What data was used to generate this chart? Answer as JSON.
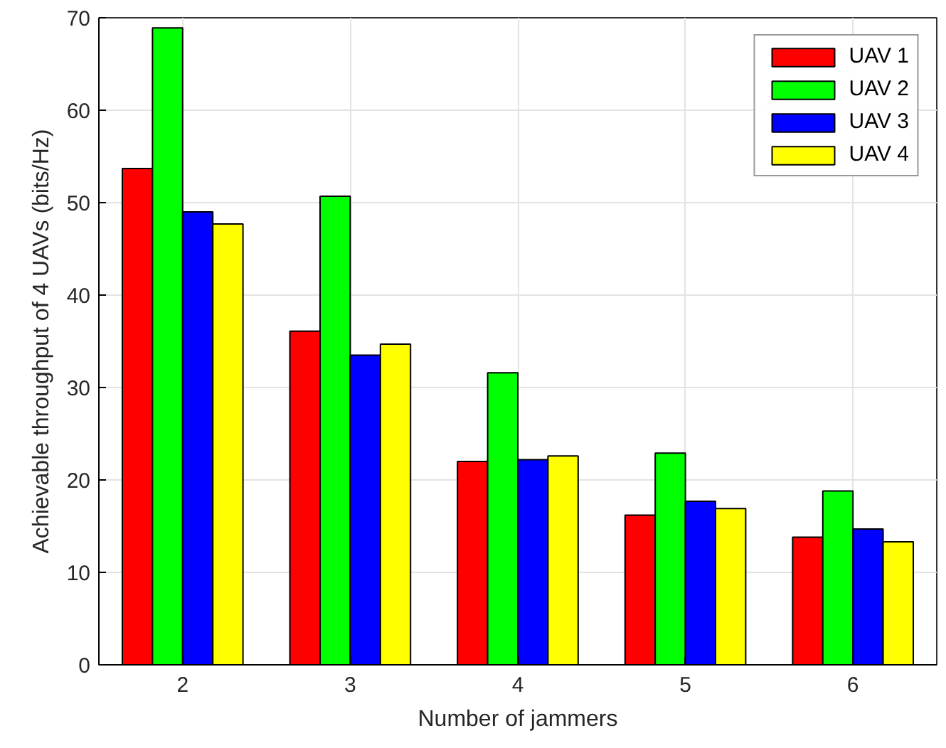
{
  "chart_data": {
    "type": "bar",
    "xlabel": "Number of jammers",
    "ylabel": "Achievable throughput of 4 UAVs (bits/Hz)",
    "categories": [
      "2",
      "3",
      "4",
      "5",
      "6"
    ],
    "series": [
      {
        "name": "UAV 1",
        "color": "#ff0000",
        "values": [
          53.7,
          36.1,
          22.0,
          16.2,
          13.8
        ]
      },
      {
        "name": "UAV 2",
        "color": "#00ff00",
        "values": [
          68.9,
          50.7,
          31.6,
          22.9,
          18.8
        ]
      },
      {
        "name": "UAV 3",
        "color": "#0000ff",
        "values": [
          49.0,
          33.5,
          22.2,
          17.7,
          14.7
        ]
      },
      {
        "name": "UAV 4",
        "color": "#ffff00",
        "values": [
          47.7,
          34.7,
          22.6,
          16.9,
          13.3
        ]
      }
    ],
    "ylim": [
      0,
      70
    ],
    "yticks": [
      0,
      10,
      20,
      30,
      40,
      50,
      60,
      70
    ],
    "grid": true,
    "legend": "top right"
  }
}
